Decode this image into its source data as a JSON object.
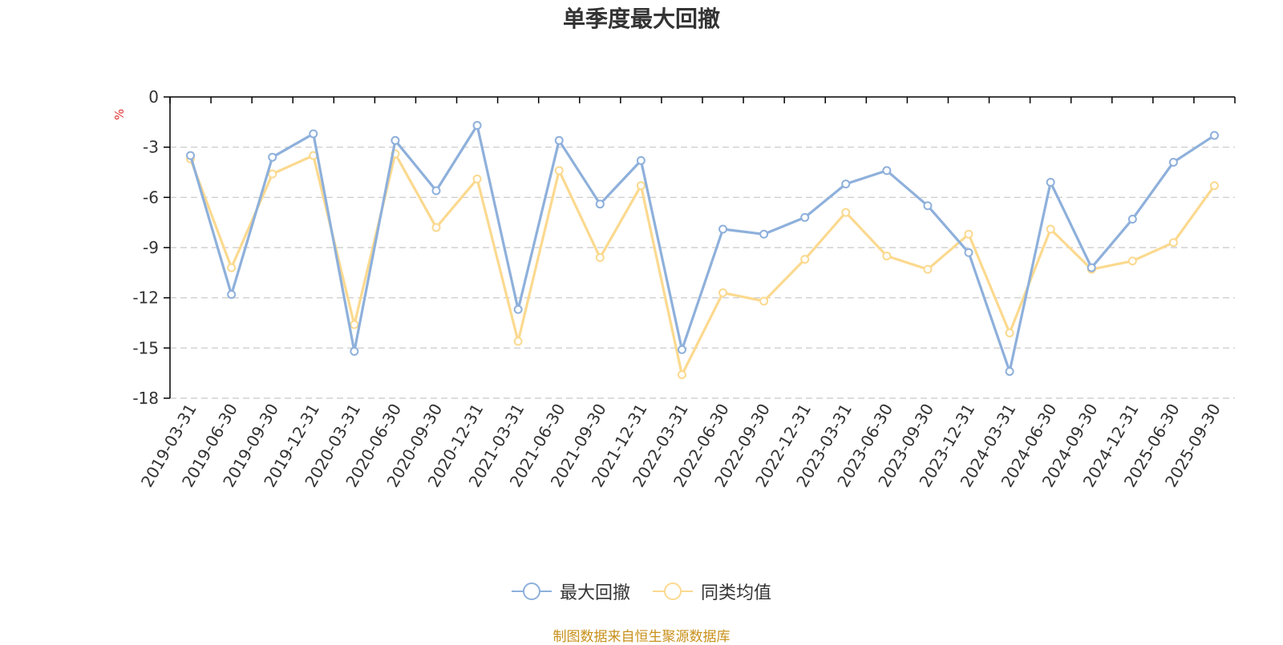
{
  "chart_data": {
    "type": "line",
    "title": "单季度最大回撤",
    "ylabel": "%",
    "ylim": [
      -18,
      0
    ],
    "yticks": [
      0,
      -3,
      -6,
      -9,
      -12,
      -15,
      -18
    ],
    "grid": true,
    "legend_position": "bottom",
    "categories": [
      "2019-03-31",
      "2019-06-30",
      "2019-09-30",
      "2019-12-31",
      "2020-03-31",
      "2020-06-30",
      "2020-09-30",
      "2020-12-31",
      "2021-03-31",
      "2021-06-30",
      "2021-09-30",
      "2021-12-31",
      "2022-03-31",
      "2022-06-30",
      "2022-09-30",
      "2022-12-31",
      "2023-03-31",
      "2023-06-30",
      "2023-09-30",
      "2023-12-31",
      "2024-03-31",
      "2024-06-30",
      "2024-09-30",
      "2024-12-31",
      "2025-06-30",
      "2025-09-30"
    ],
    "series": [
      {
        "name": "最大回撤",
        "color": "#8eb0db",
        "values": [
          -3.5,
          -11.8,
          -3.6,
          -2.2,
          -15.2,
          -2.6,
          -5.6,
          -1.7,
          -12.7,
          -2.6,
          -6.4,
          -3.8,
          -15.1,
          -7.9,
          -8.2,
          -7.2,
          -5.2,
          -4.4,
          -6.5,
          -9.3,
          -16.4,
          -5.1,
          -10.2,
          -7.3,
          -3.9,
          -2.3
        ]
      },
      {
        "name": "同类均值",
        "color": "#fbd98f",
        "values": [
          -3.7,
          -10.2,
          -4.6,
          -3.5,
          -13.6,
          -3.4,
          -7.8,
          -4.9,
          -14.6,
          -4.4,
          -9.6,
          -5.3,
          -16.6,
          -11.7,
          -12.2,
          -9.7,
          -6.9,
          -9.5,
          -10.3,
          -8.2,
          -14.1,
          -7.9,
          -10.3,
          -9.8,
          -8.7,
          -5.3
        ]
      }
    ],
    "source": "制图数据来自恒生聚源数据库",
    "colors": {
      "axis": "#000000",
      "grid": "#c8c8c8",
      "unit": "#e03030",
      "source": "#c8901a"
    }
  }
}
